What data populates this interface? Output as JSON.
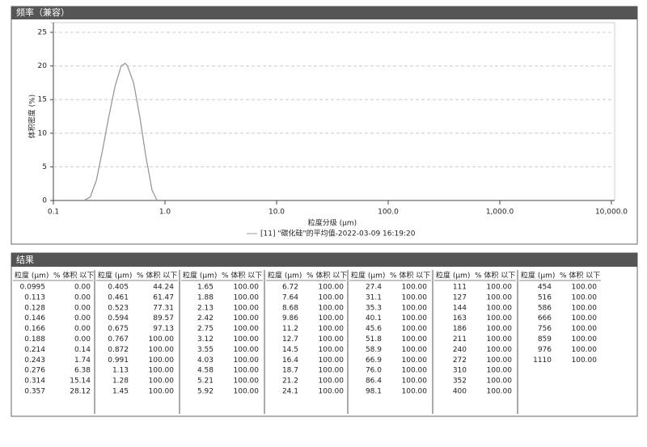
{
  "panel_title": "频率（兼容）",
  "chart_data": {
    "type": "line",
    "x_label": "粒度分级 (μm)",
    "y_label": "体积密度 (%)",
    "legend": "[11] \"碳化硅\"的平均值-2022-03-09 16:19:20",
    "x": [
      0.188,
      0.214,
      0.243,
      0.276,
      0.314,
      0.357,
      0.405,
      0.44,
      0.461,
      0.523,
      0.594,
      0.675,
      0.767,
      0.85
    ],
    "values": [
      0,
      0.5,
      3,
      7.5,
      12.5,
      17,
      20,
      20.4,
      20,
      17.5,
      12.5,
      6.5,
      1.5,
      0
    ],
    "color": "#999999",
    "xscale": "log",
    "xlim": [
      0.1,
      10000
    ],
    "ylim": [
      0,
      25
    ],
    "xticks": [
      {
        "value": 0.1,
        "label": "0.1"
      },
      {
        "value": 1,
        "label": "1.0"
      },
      {
        "value": 10,
        "label": "10.0"
      },
      {
        "value": 100,
        "label": "100.0"
      },
      {
        "value": 1000,
        "label": "1,000.0"
      },
      {
        "value": 10000,
        "label": "10,000.0"
      }
    ],
    "yticks": [
      0,
      5,
      10,
      15,
      20,
      25
    ],
    "grid": true
  },
  "table": {
    "title": "结果",
    "groups": [
      {
        "headers": [
          "粒度 (μm)",
          "% 体积 以下"
        ],
        "rows": [
          [
            "0.0995",
            "0.00"
          ],
          [
            "0.113",
            "0.00"
          ],
          [
            "0.128",
            "0.00"
          ],
          [
            "0.146",
            "0.00"
          ],
          [
            "0.166",
            "0.00"
          ],
          [
            "0.188",
            "0.00"
          ],
          [
            "0.214",
            "0.14"
          ],
          [
            "0.243",
            "1.74"
          ],
          [
            "0.276",
            "6.38"
          ],
          [
            "0.314",
            "15.14"
          ],
          [
            "0.357",
            "28.12"
          ]
        ]
      },
      {
        "headers": [
          "粒度 (μm)",
          "% 体积 以下"
        ],
        "rows": [
          [
            "0.405",
            "44.24"
          ],
          [
            "0.461",
            "61.47"
          ],
          [
            "0.523",
            "77.31"
          ],
          [
            "0.594",
            "89.57"
          ],
          [
            "0.675",
            "97.13"
          ],
          [
            "0.767",
            "100.00"
          ],
          [
            "0.872",
            "100.00"
          ],
          [
            "0.991",
            "100.00"
          ],
          [
            "1.13",
            "100.00"
          ],
          [
            "1.28",
            "100.00"
          ],
          [
            "1.45",
            "100.00"
          ]
        ]
      },
      {
        "headers": [
          "粒度 (μm)",
          "% 体积 以下"
        ],
        "rows": [
          [
            "1.65",
            "100.00"
          ],
          [
            "1.88",
            "100.00"
          ],
          [
            "2.13",
            "100.00"
          ],
          [
            "2.42",
            "100.00"
          ],
          [
            "2.75",
            "100.00"
          ],
          [
            "3.12",
            "100.00"
          ],
          [
            "3.55",
            "100.00"
          ],
          [
            "4.03",
            "100.00"
          ],
          [
            "4.58",
            "100.00"
          ],
          [
            "5.21",
            "100.00"
          ],
          [
            "5.92",
            "100.00"
          ]
        ]
      },
      {
        "headers": [
          "粒度 (μm)",
          "% 体积 以下"
        ],
        "rows": [
          [
            "6.72",
            "100.00"
          ],
          [
            "7.64",
            "100.00"
          ],
          [
            "8.68",
            "100.00"
          ],
          [
            "9.86",
            "100.00"
          ],
          [
            "11.2",
            "100.00"
          ],
          [
            "12.7",
            "100.00"
          ],
          [
            "14.5",
            "100.00"
          ],
          [
            "16.4",
            "100.00"
          ],
          [
            "18.7",
            "100.00"
          ],
          [
            "21.2",
            "100.00"
          ],
          [
            "24.1",
            "100.00"
          ]
        ]
      },
      {
        "headers": [
          "粒度 (μm)",
          "% 体积 以下"
        ],
        "rows": [
          [
            "27.4",
            "100.00"
          ],
          [
            "31.1",
            "100.00"
          ],
          [
            "35.3",
            "100.00"
          ],
          [
            "40.1",
            "100.00"
          ],
          [
            "45.6",
            "100.00"
          ],
          [
            "51.8",
            "100.00"
          ],
          [
            "58.9",
            "100.00"
          ],
          [
            "66.9",
            "100.00"
          ],
          [
            "76.0",
            "100.00"
          ],
          [
            "86.4",
            "100.00"
          ],
          [
            "98.1",
            "100.00"
          ]
        ]
      },
      {
        "headers": [
          "粒度 (μm)",
          "% 体积 以下"
        ],
        "rows": [
          [
            "111",
            "100.00"
          ],
          [
            "127",
            "100.00"
          ],
          [
            "144",
            "100.00"
          ],
          [
            "163",
            "100.00"
          ],
          [
            "186",
            "100.00"
          ],
          [
            "211",
            "100.00"
          ],
          [
            "240",
            "100.00"
          ],
          [
            "272",
            "100.00"
          ],
          [
            "310",
            "100.00"
          ],
          [
            "352",
            "100.00"
          ],
          [
            "400",
            "100.00"
          ]
        ]
      },
      {
        "headers": [
          "粒度 (μm)",
          "% 体积 以下"
        ],
        "rows": [
          [
            "454",
            "100.00"
          ],
          [
            "516",
            "100.00"
          ],
          [
            "586",
            "100.00"
          ],
          [
            "666",
            "100.00"
          ],
          [
            "756",
            "100.00"
          ],
          [
            "859",
            "100.00"
          ],
          [
            "976",
            "100.00"
          ],
          [
            "1110",
            "100.00"
          ]
        ]
      }
    ]
  }
}
